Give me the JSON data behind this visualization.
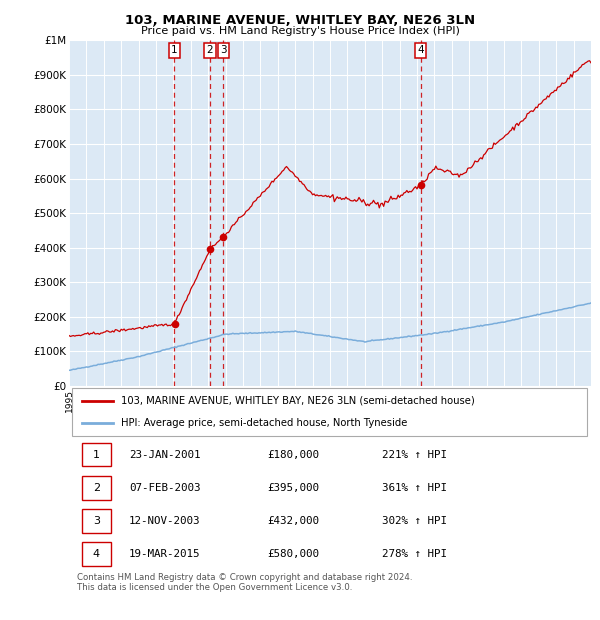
{
  "title1": "103, MARINE AVENUE, WHITLEY BAY, NE26 3LN",
  "title2": "Price paid vs. HM Land Registry's House Price Index (HPI)",
  "background_color": "#dce9f5",
  "plot_bg_color": "#dce9f5",
  "red_line_color": "#cc0000",
  "blue_line_color": "#7aaddb",
  "grid_color": "#ffffff",
  "sale_prices": [
    180000,
    395000,
    432000,
    580000
  ],
  "sale_labels": [
    "1",
    "2",
    "3",
    "4"
  ],
  "sale_dates_str": [
    "23-JAN-2001",
    "07-FEB-2003",
    "12-NOV-2003",
    "19-MAR-2015"
  ],
  "sale_hpi_str": [
    "221% ↑ HPI",
    "361% ↑ HPI",
    "302% ↑ HPI",
    "278% ↑ HPI"
  ],
  "sale_price_str": [
    "£180,000",
    "£395,000",
    "£432,000",
    "£580,000"
  ],
  "legend_label_red": "103, MARINE AVENUE, WHITLEY BAY, NE26 3LN (semi-detached house)",
  "legend_label_blue": "HPI: Average price, semi-detached house, North Tyneside",
  "footer": "Contains HM Land Registry data © Crown copyright and database right 2024.\nThis data is licensed under the Open Government Licence v3.0.",
  "ylim": [
    0,
    1000000
  ],
  "yticks": [
    0,
    100000,
    200000,
    300000,
    400000,
    500000,
    600000,
    700000,
    800000,
    900000,
    1000000
  ],
  "ytick_labels": [
    "£0",
    "£100K",
    "£200K",
    "£300K",
    "£400K",
    "£500K",
    "£600K",
    "£700K",
    "£800K",
    "£900K",
    "£1M"
  ],
  "xstart_year": 1995,
  "xend_year": 2025,
  "sale_xf": [
    2001.06,
    2003.1,
    2003.87,
    2015.21
  ]
}
